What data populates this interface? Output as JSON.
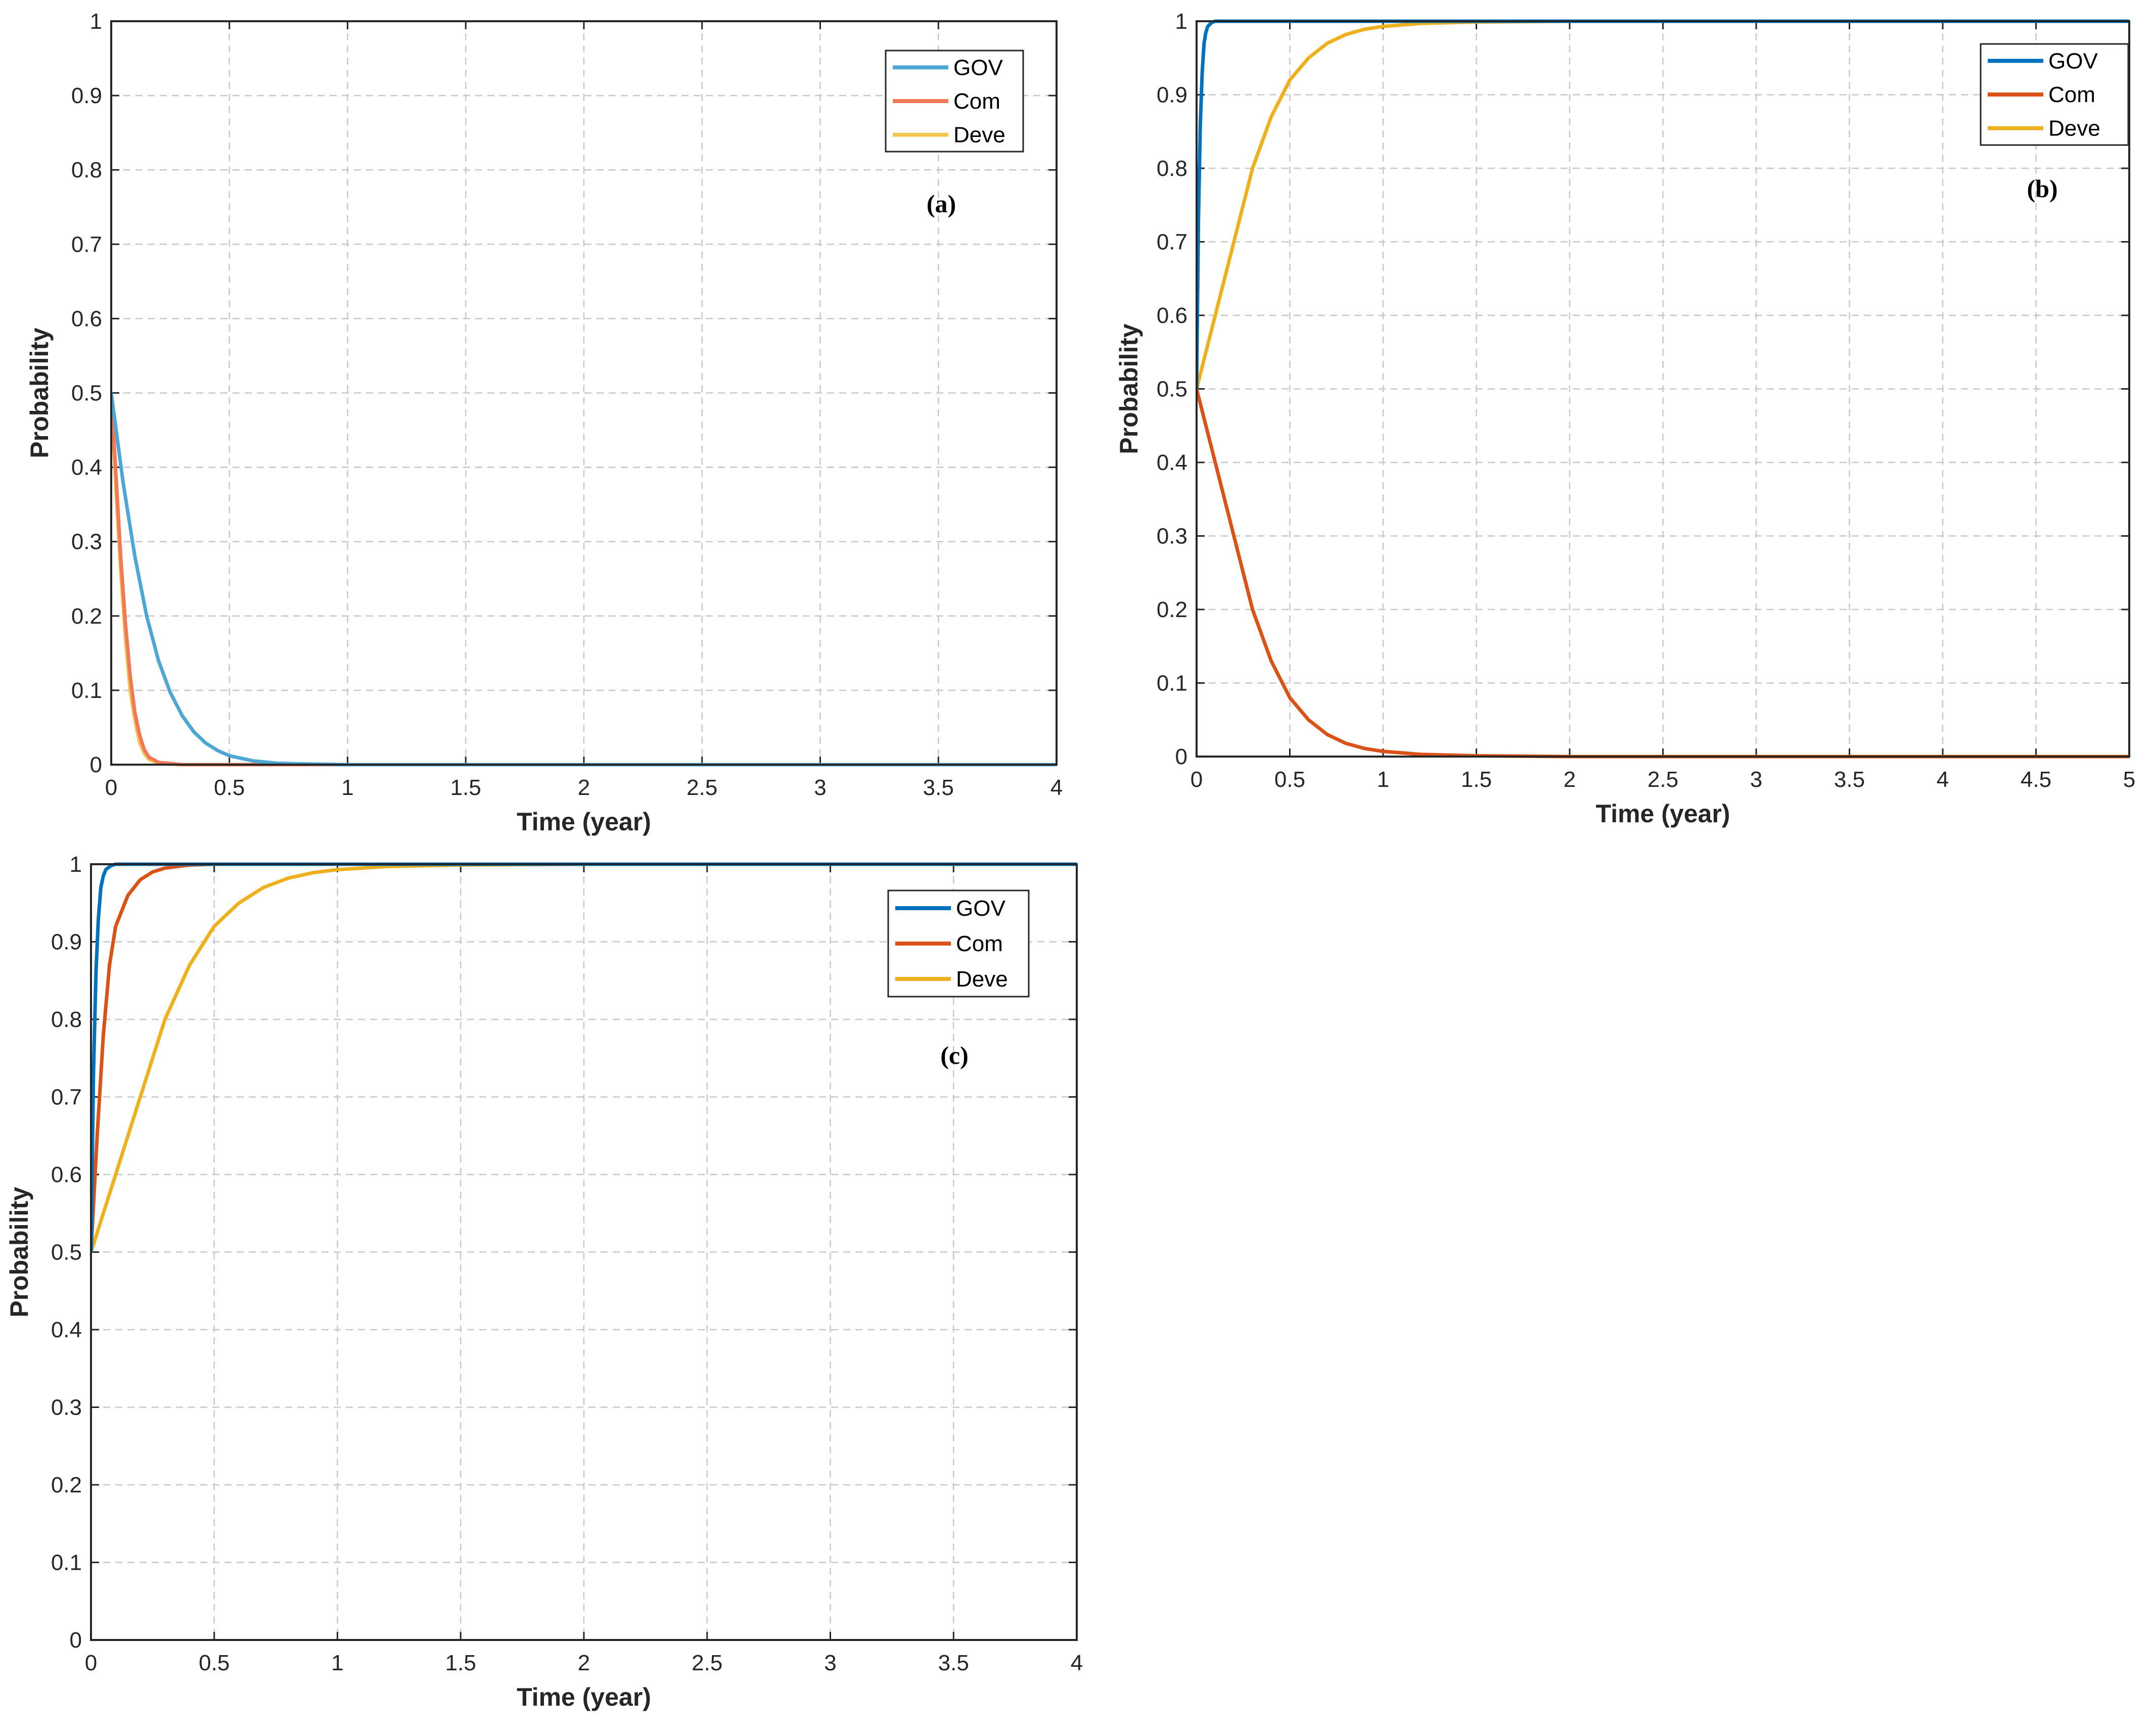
{
  "chart_data": [
    {
      "panel": "(a)",
      "type": "line",
      "xlabel": "Time (year)",
      "ylabel": "Probability",
      "xlim": [
        0,
        4
      ],
      "ylim": [
        0,
        1
      ],
      "xticks": [
        "0",
        "0.5",
        "1",
        "1.5",
        "2",
        "2.5",
        "3",
        "3.5",
        "4"
      ],
      "yticks": [
        "0",
        "0.1",
        "0.2",
        "0.3",
        "0.4",
        "0.5",
        "0.6",
        "0.7",
        "0.8",
        "0.9",
        "1"
      ],
      "grid": true,
      "legend_position": "top-right",
      "series": [
        {
          "name": "GOV",
          "color": "#4ea6d4",
          "x": [
            0,
            0.05,
            0.1,
            0.15,
            0.2,
            0.25,
            0.3,
            0.35,
            0.4,
            0.45,
            0.5,
            0.6,
            0.7,
            0.8,
            1,
            1.5,
            2,
            3,
            4
          ],
          "y": [
            0.5,
            0.38,
            0.28,
            0.2,
            0.14,
            0.097,
            0.066,
            0.044,
            0.029,
            0.019,
            0.012,
            0.005,
            0.002,
            0.001,
            0,
            0,
            0,
            0,
            0
          ]
        },
        {
          "name": "Com",
          "color": "#f0795a",
          "x": [
            0,
            0.02,
            0.04,
            0.06,
            0.08,
            0.1,
            0.12,
            0.14,
            0.16,
            0.2,
            0.3,
            0.5,
            1,
            2,
            3,
            4
          ],
          "y": [
            0.5,
            0.39,
            0.28,
            0.19,
            0.12,
            0.07,
            0.04,
            0.02,
            0.01,
            0.003,
            0,
            0,
            0,
            0,
            0,
            0
          ]
        },
        {
          "name": "Deve",
          "color": "#f5c64f",
          "x": [
            0,
            0.02,
            0.04,
            0.06,
            0.08,
            0.1,
            0.12,
            0.14,
            0.16,
            0.2,
            0.3,
            0.5,
            1,
            2,
            3,
            4
          ],
          "y": [
            0.5,
            0.37,
            0.26,
            0.17,
            0.1,
            0.06,
            0.03,
            0.015,
            0.007,
            0.002,
            0,
            0,
            0,
            0,
            0,
            0
          ]
        }
      ]
    },
    {
      "panel": "(b)",
      "type": "line",
      "xlabel": "Time (year)",
      "ylabel": "Probability",
      "xlim": [
        0,
        5
      ],
      "ylim": [
        0,
        1
      ],
      "xticks": [
        "0",
        "0.5",
        "1",
        "1.5",
        "2",
        "2.5",
        "3",
        "3.5",
        "4",
        "4.5",
        "5"
      ],
      "yticks": [
        "0",
        "0.1",
        "0.2",
        "0.3",
        "0.4",
        "0.5",
        "0.6",
        "0.7",
        "0.8",
        "0.9",
        "1"
      ],
      "grid": true,
      "legend_position": "top-right",
      "series": [
        {
          "name": "GOV",
          "color": "#0072bd",
          "x": [
            0,
            0.01,
            0.02,
            0.03,
            0.04,
            0.05,
            0.06,
            0.08,
            0.1,
            0.15,
            0.2,
            5
          ],
          "y": [
            0.5,
            0.73,
            0.86,
            0.93,
            0.97,
            0.985,
            0.993,
            0.998,
            1,
            1,
            1,
            1
          ]
        },
        {
          "name": "Com",
          "color": "#d95319",
          "x": [
            0,
            0.1,
            0.2,
            0.3,
            0.4,
            0.5,
            0.6,
            0.7,
            0.8,
            0.9,
            1,
            1.2,
            1.5,
            2,
            3,
            4,
            5
          ],
          "y": [
            0.5,
            0.4,
            0.3,
            0.2,
            0.13,
            0.08,
            0.05,
            0.03,
            0.018,
            0.011,
            0.007,
            0.003,
            0.001,
            0,
            0,
            0,
            0
          ]
        },
        {
          "name": "Deve",
          "color": "#edb120",
          "x": [
            0,
            0.1,
            0.2,
            0.3,
            0.4,
            0.5,
            0.6,
            0.7,
            0.8,
            0.9,
            1,
            1.2,
            1.5,
            2,
            3,
            4,
            5
          ],
          "y": [
            0.5,
            0.6,
            0.7,
            0.8,
            0.87,
            0.92,
            0.95,
            0.97,
            0.982,
            0.989,
            0.993,
            0.997,
            0.999,
            1,
            1,
            1,
            1
          ]
        }
      ]
    },
    {
      "panel": "(c)",
      "type": "line",
      "xlabel": "Time (year)",
      "ylabel": "Probability",
      "xlim": [
        0,
        4
      ],
      "ylim": [
        0,
        1
      ],
      "xticks": [
        "0",
        "0.5",
        "1",
        "1.5",
        "2",
        "2.5",
        "3",
        "3.5",
        "4"
      ],
      "yticks": [
        "0",
        "0.1",
        "0.2",
        "0.3",
        "0.4",
        "0.5",
        "0.6",
        "0.7",
        "0.8",
        "0.9",
        "1"
      ],
      "grid": true,
      "legend_position": "top-right",
      "series": [
        {
          "name": "GOV",
          "color": "#0072bd",
          "x": [
            0,
            0.01,
            0.02,
            0.03,
            0.04,
            0.05,
            0.06,
            0.08,
            0.1,
            0.2,
            4
          ],
          "y": [
            0.5,
            0.73,
            0.86,
            0.93,
            0.97,
            0.985,
            0.993,
            0.998,
            1,
            1,
            1
          ]
        },
        {
          "name": "Com",
          "color": "#d95319",
          "x": [
            0,
            0.025,
            0.05,
            0.075,
            0.1,
            0.15,
            0.2,
            0.25,
            0.3,
            0.4,
            0.5,
            0.6,
            4
          ],
          "y": [
            0.5,
            0.65,
            0.78,
            0.87,
            0.92,
            0.96,
            0.98,
            0.99,
            0.995,
            0.999,
            1,
            1,
            1
          ]
        },
        {
          "name": "Deve",
          "color": "#edb120",
          "x": [
            0,
            0.1,
            0.2,
            0.3,
            0.4,
            0.5,
            0.6,
            0.7,
            0.8,
            0.9,
            1,
            1.2,
            1.5,
            2,
            3,
            4
          ],
          "y": [
            0.5,
            0.6,
            0.7,
            0.8,
            0.87,
            0.92,
            0.95,
            0.97,
            0.982,
            0.989,
            0.993,
            0.997,
            0.999,
            1,
            1,
            1
          ]
        }
      ]
    }
  ]
}
